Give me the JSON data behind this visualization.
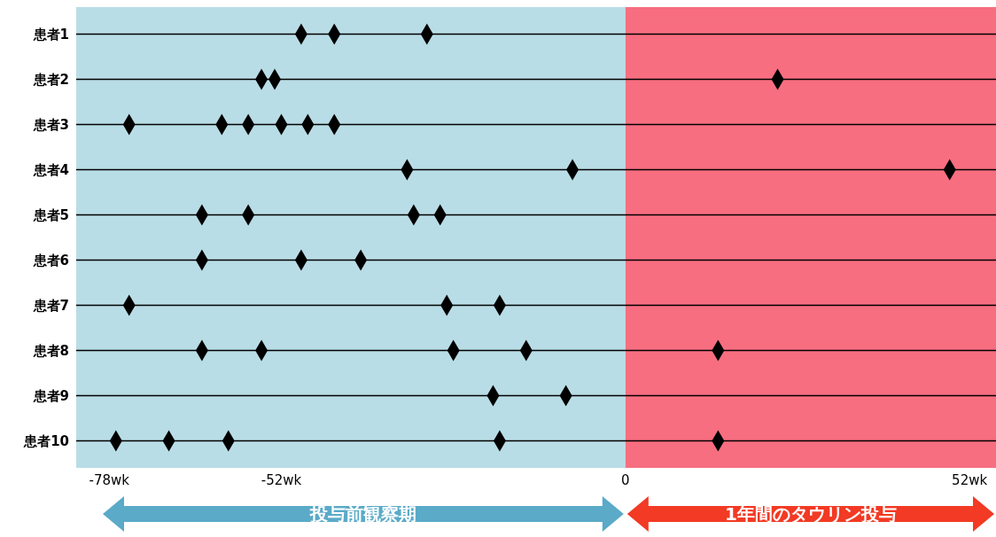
{
  "chart_data": {
    "type": "scatter",
    "orientation": "horizontal",
    "categories": [
      "患者1",
      "患者2",
      "患者3",
      "患者4",
      "患者5",
      "患者6",
      "患者7",
      "患者8",
      "患者9",
      "患者10"
    ],
    "series": [
      {
        "color": "#000000",
        "values": [
          -49,
          -55,
          -75,
          -33,
          -64,
          -64,
          -75,
          -64,
          -20,
          -77
        ]
      },
      {
        "color": "#000000",
        "values": [
          -44,
          -53,
          -61,
          -8,
          -57,
          -49,
          -27,
          -55,
          -9,
          -69
        ]
      },
      {
        "color": "#000000",
        "values": [
          -30,
          23,
          -57,
          49,
          -32,
          -40,
          -19,
          -26,
          null,
          -60
        ]
      },
      {
        "color": "#000000",
        "values": [
          null,
          null,
          -52,
          null,
          -28,
          null,
          null,
          -15,
          null,
          -19
        ]
      },
      {
        "color": "#000000",
        "values": [
          null,
          null,
          -48,
          null,
          null,
          null,
          null,
          14,
          null,
          14
        ]
      },
      {
        "color": "#000000",
        "values": [
          null,
          null,
          -44,
          null,
          null,
          null,
          null,
          null,
          null,
          null
        ]
      }
    ],
    "xlim": [
      -83,
      56
    ],
    "xticks": [
      {
        "value": -78,
        "label": "-78wk"
      },
      {
        "value": -52,
        "label": "-52wk"
      },
      0,
      {
        "value": 52,
        "label": "52wk"
      }
    ],
    "bands": [
      {
        "axis": "x",
        "from": -83,
        "to": 0,
        "label": "投与前観察期",
        "color": "#b9dde6"
      },
      {
        "axis": "x",
        "from": 0,
        "to": 56,
        "label": "1年間のタウリン投与",
        "color": "#f76e80"
      }
    ],
    "grid": "y",
    "marker": "diamond"
  }
}
